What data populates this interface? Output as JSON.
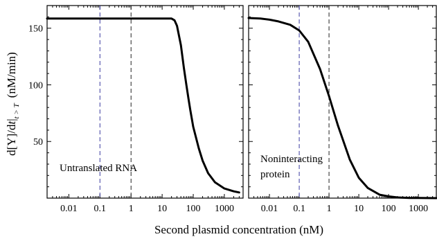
{
  "figure": {
    "ylabel_main": "d[Y]/d",
    "ylabel_italic": "t",
    "ylabel_subscript": "t > T",
    "ylabel_units": "(nM/min)",
    "xlabel": "Second plasmid concentration (nM)"
  },
  "colors": {
    "curve": "#000000",
    "dashed_blue": "#3a3aa0",
    "dashed_black": "#222222"
  },
  "chart_data": [
    {
      "type": "line",
      "panel": "left",
      "annotation": [
        "Untranslated RNA"
      ],
      "xscale": "log",
      "xlim": [
        0.002,
        4000
      ],
      "ylim": [
        0,
        170
      ],
      "xticks": [
        0.01,
        0.1,
        1,
        10,
        100,
        1000
      ],
      "xtick_labels": [
        "0.01",
        "0.1",
        "1",
        "10",
        "100",
        "1000"
      ],
      "yticks": [
        50,
        100,
        150
      ],
      "ytick_labels": [
        "50",
        "100",
        "150"
      ],
      "reference_lines": [
        {
          "x": 0.1,
          "color": "blue",
          "style": "dashed"
        },
        {
          "x": 1,
          "color": "black",
          "style": "dashed"
        }
      ],
      "series": [
        {
          "x": [
            0.002,
            0.01,
            0.1,
            1,
            10,
            20,
            25,
            30,
            40,
            50,
            60,
            70,
            80,
            100,
            150,
            200,
            300,
            500,
            1000,
            2000,
            3000
          ],
          "y": [
            158.5,
            158.5,
            158.5,
            158.5,
            158.5,
            158.5,
            157,
            152,
            135,
            115,
            100,
            88,
            78,
            63,
            44,
            33,
            22,
            14,
            8.5,
            6,
            5
          ]
        }
      ]
    },
    {
      "type": "line",
      "panel": "right",
      "annotation": [
        "Noninteracting",
        "protein"
      ],
      "xscale": "log",
      "xlim": [
        0.002,
        4000
      ],
      "ylim": [
        0,
        170
      ],
      "xticks": [
        0.01,
        0.1,
        1,
        10,
        100,
        1000
      ],
      "xtick_labels": [
        "0.01",
        "0.1",
        "1",
        "10",
        "100",
        "1000"
      ],
      "reference_lines": [
        {
          "x": 0.1,
          "color": "blue",
          "style": "dashed"
        },
        {
          "x": 1,
          "color": "black",
          "style": "dashed"
        }
      ],
      "series": [
        {
          "x": [
            0.002,
            0.005,
            0.01,
            0.02,
            0.05,
            0.1,
            0.2,
            0.5,
            1,
            2,
            5,
            10,
            20,
            50,
            100,
            200,
            500,
            1000,
            4000
          ],
          "y": [
            159,
            158.5,
            157.5,
            156,
            153,
            148,
            138,
            114,
            90,
            64,
            34,
            18,
            9,
            3,
            1.5,
            0.6,
            0.2,
            0.1,
            0
          ]
        }
      ]
    }
  ]
}
